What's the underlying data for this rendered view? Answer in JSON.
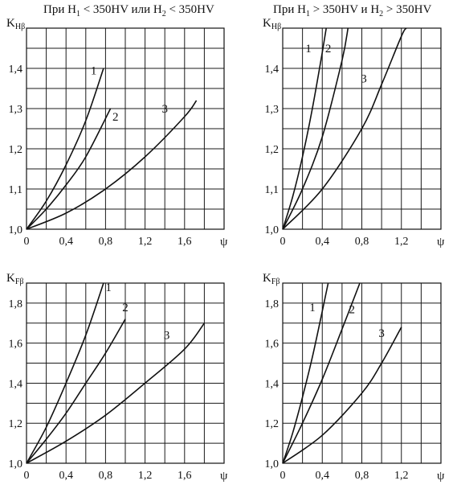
{
  "headers": {
    "left": {
      "pre": "При H",
      "s1": "1",
      "mid": " < 350HV или H",
      "s2": "2",
      "post": " < 350HV"
    },
    "right": {
      "pre": "При H",
      "s1": "1",
      "mid": " > 350HV и H",
      "s2": "2",
      "post": " > 350HV"
    }
  },
  "chart_data": [
    {
      "type": "line",
      "ylabel_main": "K",
      "ylabel_sub": "Hβ",
      "xlabel": "ψ",
      "xlim": [
        0,
        2.0
      ],
      "ylim": [
        1.0,
        1.5
      ],
      "x_ticks": [
        "0",
        "0,4",
        "0,8",
        "1,2",
        "1,6"
      ],
      "x_tick_values": [
        0,
        0.4,
        0.8,
        1.2,
        1.6
      ],
      "y_ticks": [
        "1,0",
        "1,1",
        "1,2",
        "1,3",
        "1,4"
      ],
      "y_tick_values": [
        1.0,
        1.1,
        1.2,
        1.3,
        1.4
      ],
      "grid": true,
      "series": [
        {
          "name": "1",
          "x": [
            0,
            0.2,
            0.4,
            0.6,
            0.78
          ],
          "y": [
            1.0,
            1.07,
            1.16,
            1.27,
            1.4
          ]
        },
        {
          "name": "2",
          "x": [
            0,
            0.2,
            0.4,
            0.6,
            0.85
          ],
          "y": [
            1.0,
            1.05,
            1.11,
            1.18,
            1.3
          ]
        },
        {
          "name": "3",
          "x": [
            0,
            0.4,
            0.8,
            1.2,
            1.6,
            1.72
          ],
          "y": [
            1.0,
            1.04,
            1.1,
            1.18,
            1.28,
            1.32
          ]
        }
      ]
    },
    {
      "type": "line",
      "ylabel_main": "K",
      "ylabel_sub": "Hβ",
      "xlabel": "ψ",
      "xlim": [
        0,
        1.6
      ],
      "ylim": [
        1.0,
        1.5
      ],
      "x_ticks": [
        "0",
        "0,4",
        "0,8",
        "1,2"
      ],
      "x_tick_values": [
        0,
        0.4,
        0.8,
        1.2
      ],
      "y_ticks": [
        "1,0",
        "1,1",
        "1,2",
        "1,3",
        "1,4"
      ],
      "y_tick_values": [
        1.0,
        1.1,
        1.2,
        1.3,
        1.4
      ],
      "grid": true,
      "series": [
        {
          "name": "1",
          "x": [
            0,
            0.1,
            0.2,
            0.3,
            0.4,
            0.44
          ],
          "y": [
            1.0,
            1.08,
            1.18,
            1.3,
            1.44,
            1.5
          ]
        },
        {
          "name": "2",
          "x": [
            0,
            0.2,
            0.4,
            0.6,
            0.66
          ],
          "y": [
            1.0,
            1.1,
            1.23,
            1.42,
            1.5
          ]
        },
        {
          "name": "3",
          "x": [
            0,
            0.4,
            0.8,
            1.0,
            1.2,
            1.25
          ],
          "y": [
            1.0,
            1.1,
            1.25,
            1.36,
            1.48,
            1.5
          ]
        }
      ]
    },
    {
      "type": "line",
      "ylabel_main": "K",
      "ylabel_sub": "Fβ",
      "xlabel": "ψ",
      "xlim": [
        0,
        2.0
      ],
      "ylim": [
        1.0,
        1.9
      ],
      "x_ticks": [
        "0",
        "0,4",
        "0,8",
        "1,2",
        "1,6"
      ],
      "x_tick_values": [
        0,
        0.4,
        0.8,
        1.2,
        1.6
      ],
      "y_ticks": [
        "1,0",
        "1,2",
        "1,4",
        "1,6",
        "1,8"
      ],
      "y_tick_values": [
        1.0,
        1.2,
        1.4,
        1.6,
        1.8
      ],
      "grid": true,
      "series": [
        {
          "name": "1",
          "x": [
            0,
            0.2,
            0.4,
            0.6,
            0.78
          ],
          "y": [
            1.0,
            1.18,
            1.4,
            1.64,
            1.9
          ]
        },
        {
          "name": "2",
          "x": [
            0,
            0.2,
            0.4,
            0.6,
            0.8,
            1.0
          ],
          "y": [
            1.0,
            1.12,
            1.25,
            1.4,
            1.55,
            1.72
          ]
        },
        {
          "name": "3",
          "x": [
            0,
            0.4,
            0.8,
            1.2,
            1.6,
            1.8
          ],
          "y": [
            1.0,
            1.11,
            1.24,
            1.4,
            1.57,
            1.7
          ]
        }
      ]
    },
    {
      "type": "line",
      "ylabel_main": "K",
      "ylabel_sub": "Fβ",
      "xlabel": "ψ",
      "xlim": [
        0,
        1.6
      ],
      "ylim": [
        1.0,
        1.9
      ],
      "x_ticks": [
        "0",
        "0,4",
        "0,8",
        "1,2"
      ],
      "x_tick_values": [
        0,
        0.4,
        0.8,
        1.2
      ],
      "y_ticks": [
        "1,0",
        "1,2",
        "1,4",
        "1,6",
        "1,8"
      ],
      "y_tick_values": [
        1.0,
        1.2,
        1.4,
        1.6,
        1.8
      ],
      "grid": true,
      "series": [
        {
          "name": "1",
          "x": [
            0,
            0.1,
            0.2,
            0.3,
            0.4,
            0.46
          ],
          "y": [
            1.0,
            1.15,
            1.33,
            1.53,
            1.76,
            1.9
          ]
        },
        {
          "name": "2",
          "x": [
            0,
            0.2,
            0.4,
            0.6,
            0.78
          ],
          "y": [
            1.0,
            1.2,
            1.42,
            1.67,
            1.9
          ]
        },
        {
          "name": "3",
          "x": [
            0,
            0.4,
            0.8,
            1.0,
            1.2
          ],
          "y": [
            1.0,
            1.14,
            1.35,
            1.5,
            1.68
          ]
        }
      ]
    }
  ]
}
